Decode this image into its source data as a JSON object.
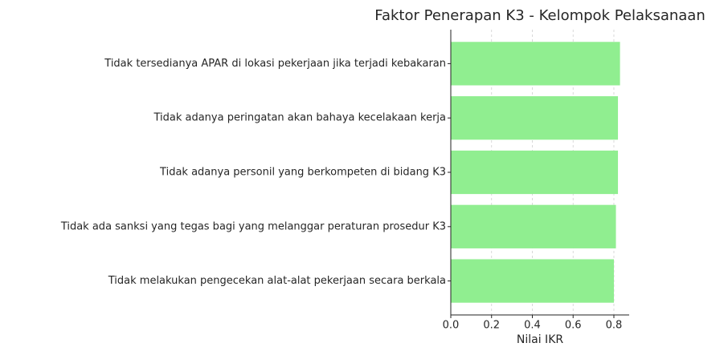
{
  "chart_data": {
    "type": "barh",
    "title": "Faktor Penerapan K3 - Kelompok Pelaksanaan",
    "xlabel": "Nilai IKR",
    "categories": [
      "Tidak tersedianya APAR di lokasi pekerjaan jika terjadi kebakaran",
      "Tidak adanya peringatan akan bahaya kecelakaan kerja",
      "Tidak adanya personil yang berkompeten di bidang K3",
      "Tidak ada sanksi yang tegas bagi yang melanggar peraturan prosedur K3",
      "Tidak melakukan pengecekan alat-alat pekerjaan secara berkala"
    ],
    "values": [
      0.83,
      0.82,
      0.82,
      0.81,
      0.8
    ],
    "color": "#90ee90",
    "xlim": [
      0,
      0.875
    ],
    "xticks": [
      {
        "value": 0,
        "label": "0.0"
      },
      0.2,
      0.4,
      0.6,
      0.8
    ],
    "grid": true
  }
}
